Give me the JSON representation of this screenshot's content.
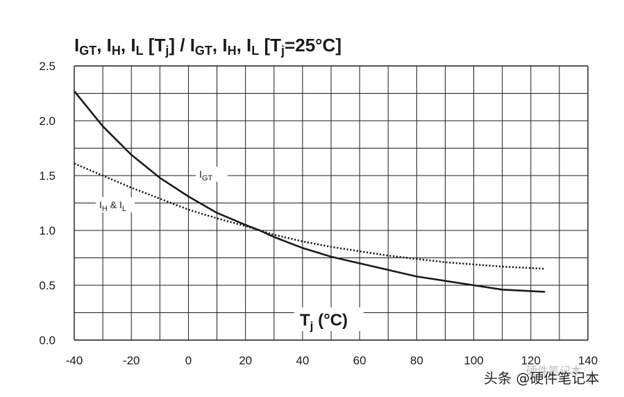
{
  "chart_data": {
    "type": "line",
    "title": {
      "parts": [
        {
          "t": "I",
          "sub": "GT"
        },
        {
          "t": ", I",
          "sub": "H"
        },
        {
          "t": ", I",
          "sub": "L"
        },
        {
          "t": " [T",
          "sub": "j"
        },
        {
          "t": "] / I",
          "sub": "GT"
        },
        {
          "t": ", I",
          "sub": "H"
        },
        {
          "t": ", I",
          "sub": "L"
        },
        {
          "t": " [T",
          "sub": "j"
        },
        {
          "t": "=25°C]",
          "sub": ""
        }
      ]
    },
    "xlabel": {
      "main": "T",
      "sub": "j",
      "rest": " (°C)"
    },
    "xlim": [
      -40,
      140
    ],
    "ylim": [
      0,
      2.5
    ],
    "x_ticks": [
      "-40",
      "-20",
      "0",
      "20",
      "40",
      "60",
      "80",
      "100",
      "120",
      "140"
    ],
    "y_ticks": [
      "0.0",
      "0.5",
      "1.0",
      "1.5",
      "2.0",
      "2.5"
    ],
    "grid": true,
    "series": [
      {
        "name": "IGT",
        "label": {
          "main": "I",
          "sub": "GT",
          "rest": ""
        },
        "style": "solid",
        "color": "#1a1a1a",
        "x": [
          -40,
          -30,
          -20,
          -10,
          0,
          10,
          20,
          25,
          30,
          40,
          50,
          60,
          70,
          80,
          90,
          100,
          110,
          125
        ],
        "y": [
          2.27,
          1.95,
          1.69,
          1.48,
          1.31,
          1.16,
          1.05,
          1.0,
          0.94,
          0.84,
          0.76,
          0.7,
          0.64,
          0.58,
          0.54,
          0.5,
          0.46,
          0.44
        ]
      },
      {
        "name": "IH & IL",
        "label": {
          "main": "I",
          "sub": "H",
          "rest": " & I",
          "sub2": "L"
        },
        "style": "dotted",
        "color": "#1a1a1a",
        "x": [
          -40,
          -30,
          -20,
          -10,
          0,
          10,
          20,
          25,
          30,
          40,
          50,
          60,
          70,
          80,
          90,
          100,
          110,
          125
        ],
        "y": [
          1.61,
          1.5,
          1.39,
          1.29,
          1.19,
          1.11,
          1.04,
          1.0,
          0.96,
          0.9,
          0.85,
          0.81,
          0.77,
          0.74,
          0.71,
          0.69,
          0.67,
          0.65
        ]
      }
    ]
  },
  "watermark": {
    "text": "头条 @硬件笔记本",
    "faint_text": "硬件笔记本"
  }
}
